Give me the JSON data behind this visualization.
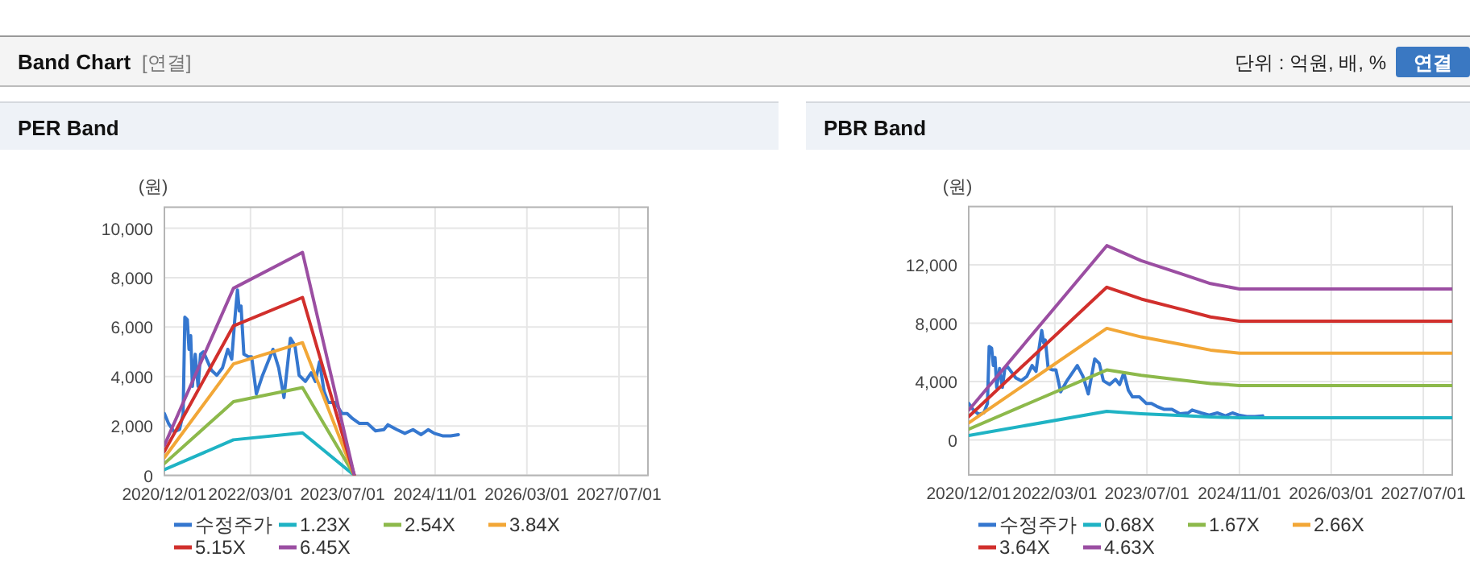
{
  "chart_data": [
    {
      "type": "line",
      "title": "PER Band",
      "ylabel": "(원)",
      "annotations": [
        "Band Chart",
        "[연결]",
        "단위 : 억원, 배, %",
        "연결"
      ],
      "xlim": [
        "2020-12-01",
        "2027-12-01"
      ],
      "xticks": [
        {
          "value": "2020-12-01",
          "label": "2020/12/01"
        },
        {
          "value": "2022-03-01",
          "label": "2022/03/01"
        },
        {
          "value": "2023-07-01",
          "label": "2023/07/01"
        },
        {
          "value": "2024-11-01",
          "label": "2024/11/01"
        },
        {
          "value": "2026-03-01",
          "label": "2026/03/01"
        },
        {
          "value": "2027-07-01",
          "label": "2027/07/01"
        }
      ],
      "ylim": [
        0,
        10850
      ],
      "yticks": [
        0,
        {
          "value": 2000,
          "label": "2,000"
        },
        {
          "value": 4000,
          "label": "4,000"
        },
        {
          "value": 6000,
          "label": "6,000"
        },
        {
          "value": 8000,
          "label": "8,000"
        },
        {
          "value": 10000,
          "label": "10,000"
        }
      ],
      "grid": true,
      "legend": "bottom",
      "series": [
        {
          "name": "수정주가",
          "color": "#3577cf",
          "x": [
            "2020-12-01",
            "2020-12-24",
            "2021-01-22",
            "2021-02-19",
            "2021-03-10",
            "2021-03-19",
            "2021-04-01",
            "2021-04-10",
            "2021-04-19",
            "2021-04-28",
            "2021-05-13",
            "2021-05-28",
            "2021-06-10",
            "2021-06-25",
            "2021-08-07",
            "2021-09-04",
            "2021-10-04",
            "2021-11-01",
            "2021-11-22",
            "2021-12-07",
            "2021-12-22",
            "2022-01-01",
            "2022-01-10",
            "2022-01-25",
            "2022-02-18",
            "2022-03-07",
            "2022-04-01",
            "2022-05-04",
            "2022-06-28",
            "2022-07-28",
            "2022-08-25",
            "2022-09-28",
            "2022-10-22",
            "2022-11-13",
            "2022-12-16",
            "2023-01-16",
            "2023-02-07",
            "2023-03-01",
            "2023-03-25",
            "2023-04-16",
            "2023-05-22",
            "2023-06-28",
            "2023-07-25",
            "2023-08-22",
            "2023-09-28",
            "2023-11-10",
            "2023-12-22",
            "2024-02-04",
            "2024-02-25",
            "2024-04-13",
            "2024-05-25",
            "2024-07-07",
            "2024-08-19",
            "2024-09-25",
            "2024-10-28",
            "2024-12-10",
            "2025-01-22",
            "2025-03-04"
          ],
          "values": [
            2500,
            2080,
            1760,
            1860,
            2500,
            6400,
            6300,
            5100,
            5650,
            3600,
            4900,
            3600,
            4900,
            5000,
            4250,
            4050,
            4350,
            5100,
            4700,
            6200,
            7500,
            6650,
            6850,
            4900,
            4800,
            4800,
            3300,
            4050,
            5100,
            4350,
            3150,
            5550,
            5250,
            4050,
            3800,
            4150,
            3800,
            4600,
            3400,
            2950,
            2950,
            2500,
            2500,
            2300,
            2100,
            2100,
            1800,
            1850,
            2050,
            1850,
            1700,
            1850,
            1650,
            1850,
            1700,
            1600,
            1600,
            1650
          ]
        },
        {
          "name": "1.23X",
          "color": "#1fb3c4",
          "x": [
            "2020-12-01",
            "2021-12-01",
            "2022-12-01",
            "2023-09-01"
          ],
          "values": [
            230,
            1440,
            1720,
            0
          ]
        },
        {
          "name": "2.54X",
          "color": "#8db94b",
          "x": [
            "2020-12-01",
            "2021-12-01",
            "2022-12-01",
            "2023-09-01"
          ],
          "values": [
            480,
            2980,
            3550,
            0
          ]
        },
        {
          "name": "3.84X",
          "color": "#f2a737",
          "x": [
            "2020-12-01",
            "2021-12-01",
            "2022-12-01",
            "2023-09-01"
          ],
          "values": [
            720,
            4510,
            5370,
            0
          ]
        },
        {
          "name": "5.15X",
          "color": "#d12f2c",
          "x": [
            "2020-12-01",
            "2021-12-01",
            "2022-12-01",
            "2023-09-01"
          ],
          "values": [
            970,
            6050,
            7200,
            0
          ]
        },
        {
          "name": "6.45X",
          "color": "#9b4ea2",
          "x": [
            "2020-12-01",
            "2021-12-01",
            "2022-12-01",
            "2023-09-01"
          ],
          "values": [
            1220,
            7570,
            9020,
            0
          ]
        }
      ]
    },
    {
      "type": "line",
      "title": "PBR Band",
      "ylabel": "(원)",
      "xlim": [
        "2020-12-01",
        "2027-12-01"
      ],
      "xticks": [
        {
          "value": "2020-12-01",
          "label": "2020/12/01"
        },
        {
          "value": "2022-03-01",
          "label": "2022/03/01"
        },
        {
          "value": "2023-07-01",
          "label": "2023/07/01"
        },
        {
          "value": "2024-11-01",
          "label": "2024/11/01"
        },
        {
          "value": "2026-03-01",
          "label": "2026/03/01"
        },
        {
          "value": "2027-07-01",
          "label": "2027/07/01"
        }
      ],
      "ylim": [
        -2400,
        16000
      ],
      "yticks": [
        0,
        {
          "value": 4000,
          "label": "4,000"
        },
        {
          "value": 8000,
          "label": "8,000"
        },
        {
          "value": 12000,
          "label": "12,000"
        }
      ],
      "grid": true,
      "legend": "bottom",
      "series": [
        {
          "name": "수정주가",
          "color": "#3577cf",
          "x": [
            "2020-12-01",
            "2020-12-24",
            "2021-01-22",
            "2021-02-19",
            "2021-03-10",
            "2021-03-19",
            "2021-04-01",
            "2021-04-10",
            "2021-04-19",
            "2021-04-28",
            "2021-05-13",
            "2021-05-28",
            "2021-06-10",
            "2021-06-25",
            "2021-08-07",
            "2021-09-04",
            "2021-10-04",
            "2021-11-01",
            "2021-11-22",
            "2021-12-07",
            "2021-12-22",
            "2022-01-01",
            "2022-01-10",
            "2022-01-25",
            "2022-02-18",
            "2022-03-07",
            "2022-04-01",
            "2022-05-04",
            "2022-06-28",
            "2022-07-28",
            "2022-08-25",
            "2022-09-28",
            "2022-10-22",
            "2022-11-13",
            "2022-12-16",
            "2023-01-16",
            "2023-02-07",
            "2023-03-01",
            "2023-03-25",
            "2023-04-16",
            "2023-05-22",
            "2023-06-28",
            "2023-07-25",
            "2023-08-22",
            "2023-09-28",
            "2023-11-10",
            "2023-12-22",
            "2024-02-04",
            "2024-02-25",
            "2024-04-13",
            "2024-05-25",
            "2024-07-07",
            "2024-08-19",
            "2024-09-25",
            "2024-10-28",
            "2024-12-10",
            "2025-01-22",
            "2025-03-04"
          ],
          "values": [
            2500,
            2080,
            1760,
            1860,
            2500,
            6400,
            6300,
            5100,
            5650,
            3600,
            4900,
            3600,
            4900,
            5000,
            4250,
            4050,
            4350,
            5100,
            4700,
            6200,
            7500,
            6650,
            6850,
            4900,
            4800,
            4800,
            3300,
            4050,
            5100,
            4350,
            3150,
            5550,
            5250,
            4050,
            3800,
            4150,
            3800,
            4600,
            3400,
            2950,
            2950,
            2500,
            2500,
            2300,
            2100,
            2100,
            1800,
            1850,
            2050,
            1850,
            1700,
            1850,
            1650,
            1850,
            1700,
            1600,
            1600,
            1650
          ]
        },
        {
          "name": "0.68X",
          "color": "#1fb3c4",
          "x": [
            "2020-12-01",
            "2022-12-01",
            "2023-06-01",
            "2024-01-01",
            "2024-06-01",
            "2024-11-01",
            "2027-12-01"
          ],
          "values": [
            300,
            1960,
            1800,
            1670,
            1570,
            1520,
            1520
          ]
        },
        {
          "name": "1.67X",
          "color": "#8db94b",
          "x": [
            "2020-12-01",
            "2022-12-01",
            "2023-06-01",
            "2024-01-01",
            "2024-06-01",
            "2024-11-01",
            "2027-12-01"
          ],
          "values": [
            740,
            4800,
            4430,
            4100,
            3870,
            3730,
            3730
          ]
        },
        {
          "name": "2.66X",
          "color": "#f2a737",
          "x": [
            "2020-12-01",
            "2022-12-01",
            "2023-06-01",
            "2024-01-01",
            "2024-06-01",
            "2024-11-01",
            "2027-12-01"
          ],
          "values": [
            1170,
            7650,
            7060,
            6540,
            6160,
            5950,
            5950
          ]
        },
        {
          "name": "3.64X",
          "color": "#d12f2c",
          "x": [
            "2020-12-01",
            "2022-12-01",
            "2023-06-01",
            "2024-01-01",
            "2024-06-01",
            "2024-11-01",
            "2027-12-01"
          ],
          "values": [
            1600,
            10470,
            9660,
            8950,
            8430,
            8140,
            8140
          ]
        },
        {
          "name": "4.63X",
          "color": "#9b4ea2",
          "x": [
            "2020-12-01",
            "2022-12-01",
            "2023-06-01",
            "2024-01-01",
            "2024-06-01",
            "2024-11-01",
            "2027-12-01"
          ],
          "values": [
            2040,
            13320,
            12290,
            11380,
            10720,
            10350,
            10350
          ]
        }
      ]
    }
  ]
}
